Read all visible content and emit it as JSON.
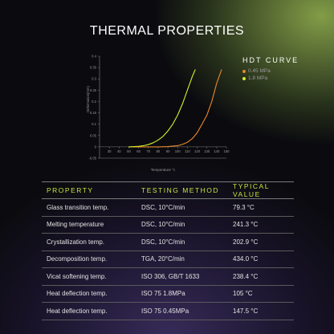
{
  "title": "THERMAL PROPERTIES",
  "legend": {
    "title": "HDT CURVE",
    "items": [
      {
        "name": "0.45 MPa",
        "color": "#e8892a"
      },
      {
        "name": "1.8 MPa",
        "color": "#d4ef2e"
      }
    ]
  },
  "chart_data": {
    "type": "line",
    "title": "",
    "xlabel": "Temperature °c",
    "ylabel": "Deformation(mm)",
    "xlim": [
      20,
      150
    ],
    "ylim": [
      -0.05,
      0.4
    ],
    "xticks": [
      30,
      40,
      50,
      60,
      70,
      80,
      90,
      100,
      110,
      120,
      130,
      140,
      150
    ],
    "yticks": [
      -0.05,
      0,
      0.05,
      0.1,
      0.15,
      0.2,
      0.25,
      0.3,
      0.35,
      0.4
    ],
    "xtick_labels": [
      "30",
      "40",
      "50",
      "60",
      "70",
      "80",
      "90",
      "100",
      "110",
      "120",
      "130",
      "140",
      "150"
    ],
    "ytick_labels": [
      "-0.05",
      "0",
      "0.05",
      "0.1",
      "0.15",
      "0.2",
      "0.25",
      "0.3",
      "0.35",
      "0.4"
    ],
    "grid": false,
    "legend_position": "right",
    "series": [
      {
        "name": "0.45 MPa",
        "color": "#e8892a",
        "x": [
          50,
          60,
          70,
          80,
          90,
          100,
          105,
          110,
          115,
          120,
          125,
          130,
          135,
          140,
          145
        ],
        "y": [
          0,
          0,
          0,
          0,
          0.001,
          0.005,
          0.011,
          0.02,
          0.036,
          0.062,
          0.1,
          0.14,
          0.2,
          0.28,
          0.34
        ]
      },
      {
        "name": "1.8 MPa",
        "color": "#d4ef2e",
        "x": [
          50,
          60,
          65,
          70,
          75,
          80,
          85,
          90,
          95,
          100,
          105,
          110,
          115,
          118
        ],
        "y": [
          0,
          0.002,
          0.005,
          0.01,
          0.018,
          0.03,
          0.046,
          0.07,
          0.1,
          0.14,
          0.19,
          0.25,
          0.31,
          0.34
        ]
      }
    ]
  },
  "table": {
    "headers": [
      "PROPERTY",
      "TESTING METHOD",
      "TYPICAL VALUE"
    ],
    "rows": [
      [
        "Glass transition temp.",
        "DSC, 10°C/min",
        "79.3 °C"
      ],
      [
        "Melting temperature",
        "DSC, 10°C/min",
        "241.3 °C"
      ],
      [
        "Crystallization temp.",
        "DSC, 10°C/min",
        "202.9 °C"
      ],
      [
        "Decomposition temp.",
        "TGA, 20°C/min",
        "434.0 °C"
      ],
      [
        "Vicat softening temp.",
        "ISO 306, GB/T 1633",
        "238.4 °C"
      ],
      [
        "Heat deflection temp.",
        "ISO 75 1.8MPa",
        "105 °C"
      ],
      [
        "Heat deflection temp.",
        "ISO 75 0.45MPa",
        "147.5 °C"
      ]
    ]
  }
}
